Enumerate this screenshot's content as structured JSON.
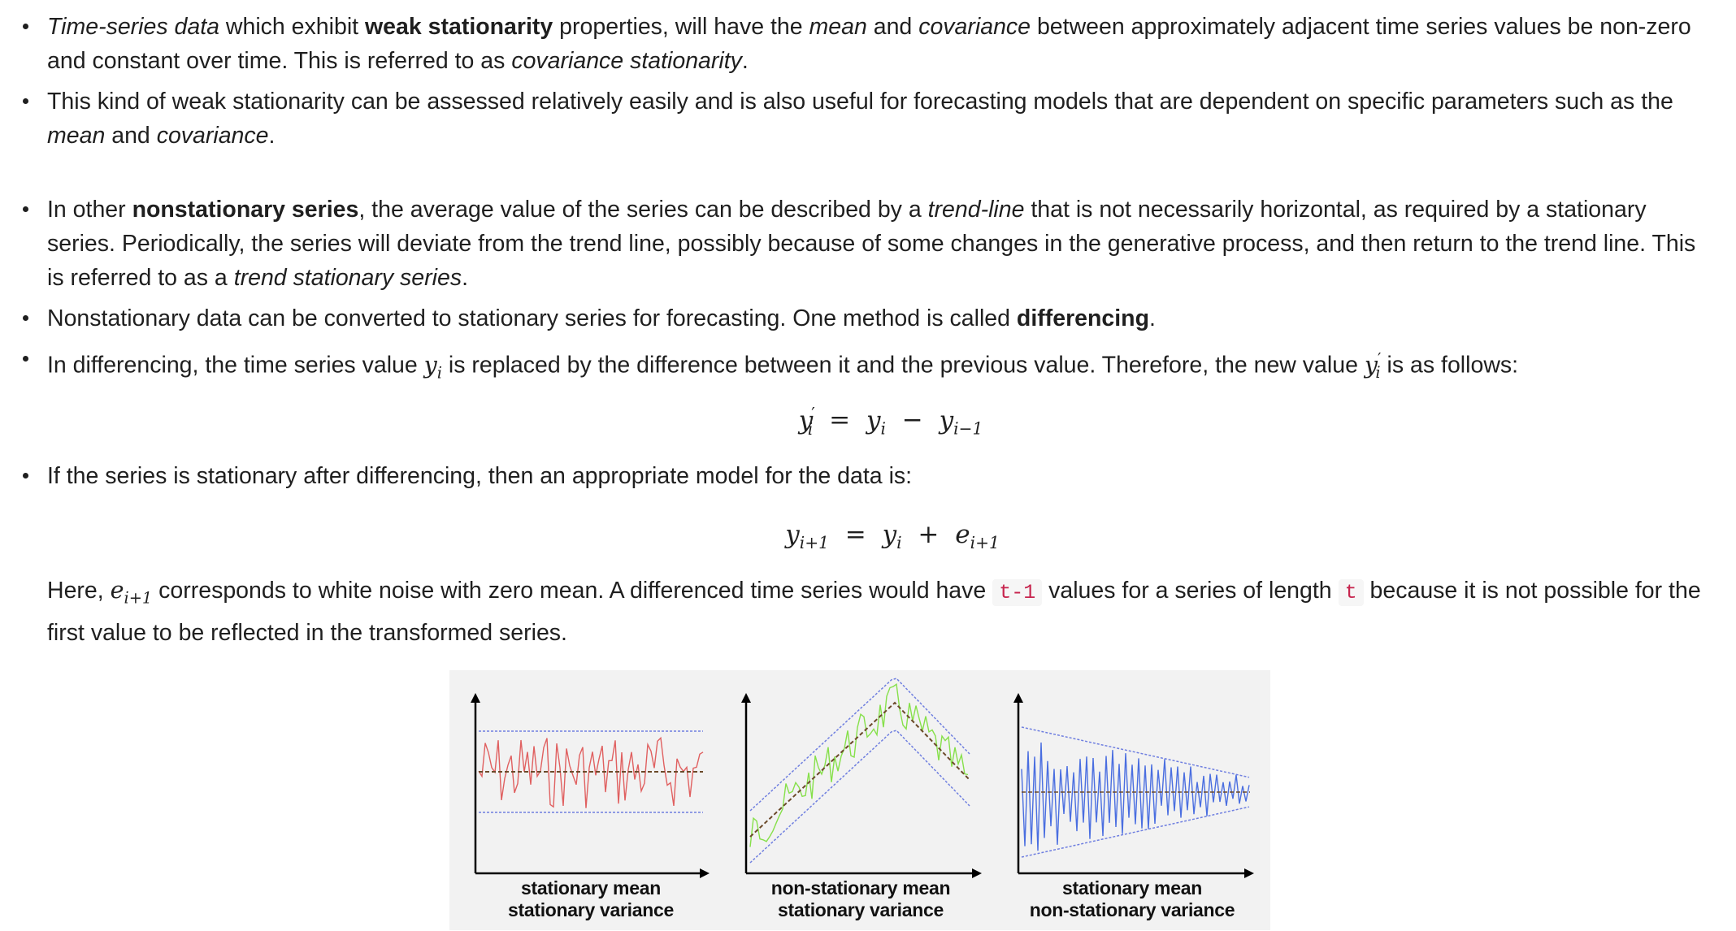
{
  "bullets_top": [
    {
      "parts": [
        {
          "t": "Time-series data",
          "s": "i"
        },
        {
          "t": " which exhibit "
        },
        {
          "t": "weak stationarity",
          "s": "b"
        },
        {
          "t": " properties, will have the "
        },
        {
          "t": "mean",
          "s": "i"
        },
        {
          "t": " and "
        },
        {
          "t": "covariance",
          "s": "i"
        },
        {
          "t": " between approximately adjacent time series values be non-zero and constant over time. This is referred to as "
        },
        {
          "t": "covariance stationarity",
          "s": "i"
        },
        {
          "t": "."
        }
      ]
    },
    {
      "parts": [
        {
          "t": "This kind of weak stationarity can be assessed relatively easily and is also useful for forecasting models that are dependent on specific parameters such as the "
        },
        {
          "t": "mean",
          "s": "i"
        },
        {
          "t": " and "
        },
        {
          "t": "covariance",
          "s": "i"
        },
        {
          "t": "."
        }
      ]
    }
  ],
  "bullets_mid": [
    {
      "parts": [
        {
          "t": "In other "
        },
        {
          "t": "nonstationary series",
          "s": "b"
        },
        {
          "t": ", the average value of the series can be described by a "
        },
        {
          "t": "trend-line",
          "s": "i"
        },
        {
          "t": " that is not necessarily horizontal, as required by a stationary series. Periodically, the series will deviate from the trend line, possibly because of some changes in the generative process, and then return to the trend line. This is referred to as a "
        },
        {
          "t": "trend stationary series",
          "s": "i"
        },
        {
          "t": "."
        }
      ]
    },
    {
      "parts": [
        {
          "t": "Nonstationary data can be converted to stationary series for forecasting. One method is called "
        },
        {
          "t": "differencing",
          "s": "b"
        },
        {
          "t": "."
        }
      ]
    },
    {
      "parts": [
        {
          "t": "In differencing, the time series value "
        },
        {
          "t": "y",
          "s": "m",
          "sub": "i"
        },
        {
          "t": " is replaced by the difference between it and the previous value. Therefore, the new value "
        },
        {
          "t": "y",
          "s": "m",
          "sup": "′",
          "sub": "i"
        },
        {
          "t": " is as follows:"
        }
      ]
    }
  ],
  "equation_1": {
    "lhs": "y",
    "lhs_sup": "′",
    "lhs_sub": "i",
    "op": "=",
    "a": "y",
    "a_sub": "i",
    "minus": "−",
    "b": "y",
    "b_sub": "i−1"
  },
  "bullets_low": [
    {
      "parts": [
        {
          "t": "If the series is stationary after differencing, then an appropriate model for the data is:"
        }
      ]
    }
  ],
  "equation_2": {
    "lhs": "y",
    "lhs_sub": "i+1",
    "op": "=",
    "a": "y",
    "a_sub": "i",
    "plus": "+",
    "b": "e",
    "b_sub": "i+1"
  },
  "paragraph": {
    "parts": [
      {
        "t": "Here, "
      },
      {
        "t": "e",
        "s": "m",
        "sub": "i+1"
      },
      {
        "t": " corresponds to white noise with zero mean. A differenced time series would have "
      },
      {
        "t": "t-1",
        "s": "c"
      },
      {
        "t": " values for a series of length "
      },
      {
        "t": "t",
        "s": "c"
      },
      {
        "t": " because it is not possible for the first value to be reflected in the transformed series."
      }
    ]
  },
  "figure": {
    "panels": [
      {
        "line1": "stationary mean",
        "line2": "stationary variance",
        "color": "#e06060"
      },
      {
        "line1": "non-stationary mean",
        "line2": "stationary variance",
        "color": "#86e04a"
      },
      {
        "line1": "stationary mean",
        "line2": "non-stationary variance",
        "color": "#4a6ee0"
      }
    ],
    "band_color": "#6f7fe0",
    "trend_color": "#6b4a2a"
  }
}
